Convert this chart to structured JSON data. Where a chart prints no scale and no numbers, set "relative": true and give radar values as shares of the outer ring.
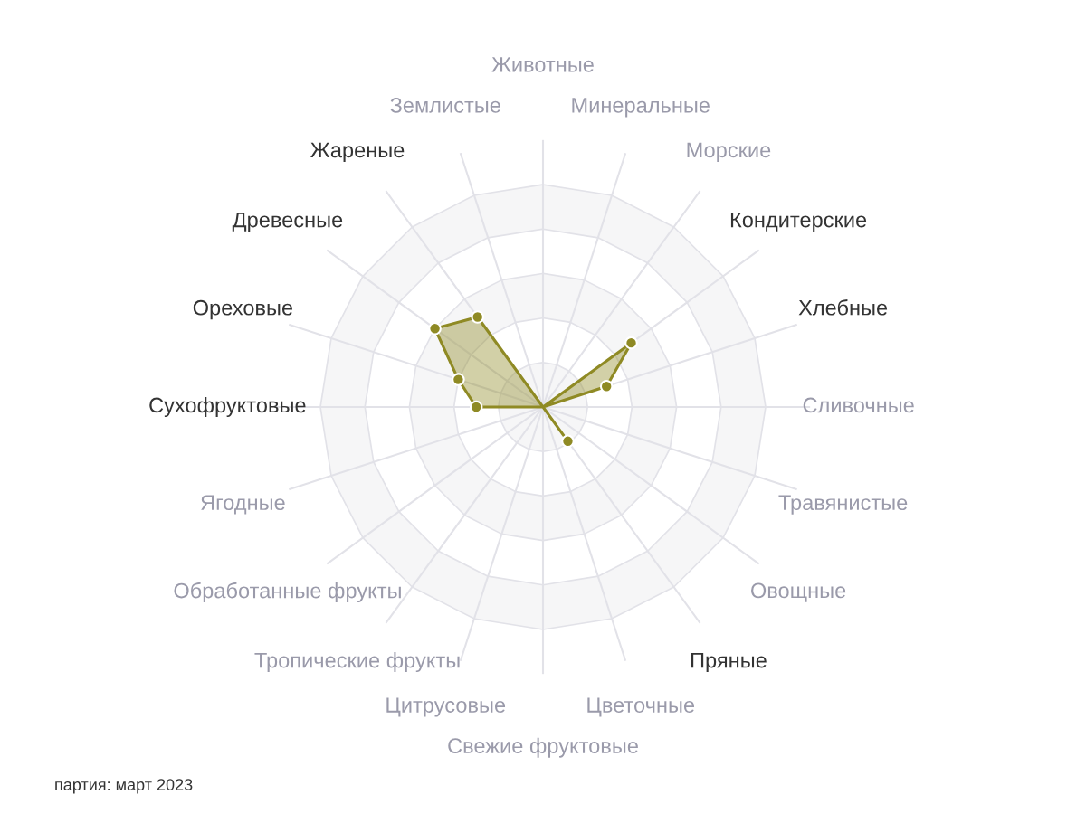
{
  "chart_data": {
    "type": "radar",
    "relative": true,
    "categories": [
      "Животные",
      "Минеральные",
      "Морские",
      "Кондитерские",
      "Хлебные",
      "Сливочные",
      "Травянистые",
      "Овощные",
      "Пряные",
      "Цветочные",
      "Свежие фруктовые",
      "Цитрусовые",
      "Тропические фрукты",
      "Обработанные фрукты",
      "Ягодные",
      "Сухофруктовые",
      "Ореховые",
      "Древесные",
      "Жареные",
      "Землистые"
    ],
    "series": [
      {
        "color": "#8f8a24",
        "values": [
          0,
          0,
          0,
          0.49,
          0.3,
          0,
          0,
          0,
          0.19,
          0,
          0,
          0,
          0,
          0,
          0,
          0.3,
          0.4,
          0.6,
          0.5,
          0
        ]
      }
    ],
    "marker": "circle",
    "grid": true,
    "legend": false,
    "annotations": [
      "партия: март 2023"
    ]
  }
}
